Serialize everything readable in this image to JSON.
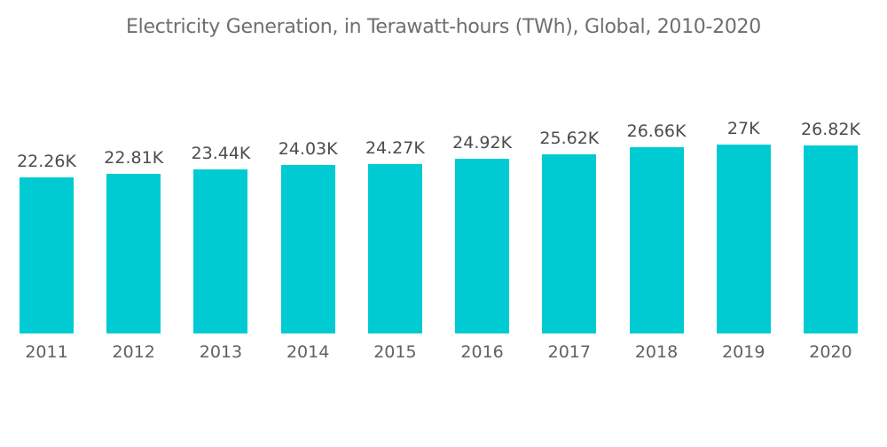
{
  "chart": {
    "title": "Electricity Generation, in Terawatt-hours (TWh), Global, 2010-2020"
  },
  "chart_data": {
    "type": "bar",
    "title": "Electricity Generation, in Terawatt-hours (TWh), Global, 2010-2020",
    "categories": [
      "2011",
      "2012",
      "2013",
      "2014",
      "2015",
      "2016",
      "2017",
      "2018",
      "2019",
      "2020"
    ],
    "values": [
      22260,
      22810,
      23440,
      24030,
      24270,
      24920,
      25620,
      26660,
      27000,
      26820
    ],
    "value_labels": [
      "22.26K",
      "22.81K",
      "23.44K",
      "24.03K",
      "24.27K",
      "24.92K",
      "25.62K",
      "26.66K",
      "27K",
      "26.82K"
    ],
    "xlabel": "",
    "ylabel": "",
    "ylim": [
      0,
      27000
    ],
    "grid": false,
    "legend": false,
    "axes_visible": false,
    "bar_color": "#00CBD2",
    "background_color": "#FFFFFF",
    "title_color": "#6E6E6E",
    "value_label_color": "#4C4C4C",
    "category_label_color": "#616161"
  }
}
